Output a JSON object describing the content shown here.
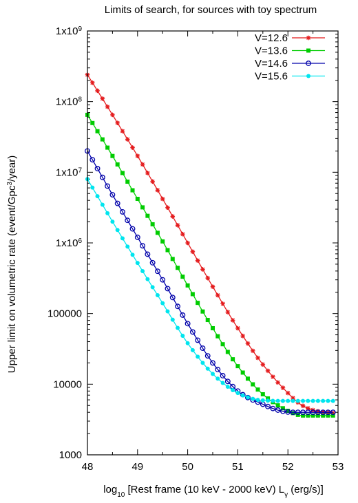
{
  "chart_data": {
    "type": "line",
    "title": "Limits of search, for sources with toy spectrum",
    "xlabel_main": "log",
    "xlabel_sub": "10",
    "xlabel_rest": " [Rest frame (10 keV - 2000 keV)  L",
    "xlabel_gamma": "γ",
    "xlabel_unit": " (erg/s)]",
    "ylabel_pre": "Upper limit on volumetric rate (event/Gpc",
    "ylabel_sup": "3",
    "ylabel_post": "/year)",
    "xlim": [
      48,
      53
    ],
    "ylim": [
      1000,
      1000000000
    ],
    "yscale": "log",
    "x_ticks": [
      "48",
      "49",
      "50",
      "51",
      "52",
      "53"
    ],
    "y_ticks": [
      {
        "value": 1000,
        "label": "1000",
        "sup": ""
      },
      {
        "value": 10000,
        "label": "10000",
        "sup": ""
      },
      {
        "value": 100000,
        "label": "100000",
        "sup": ""
      },
      {
        "value": 1000000,
        "label": "1x10",
        "sup": "6"
      },
      {
        "value": 10000000,
        "label": "1x10",
        "sup": "7"
      },
      {
        "value": 100000000,
        "label": "1x10",
        "sup": "8"
      },
      {
        "value": 1000000000,
        "label": "1x10",
        "sup": "9"
      }
    ],
    "legend_position": "top-right",
    "series": [
      {
        "name": "V=12.6",
        "color": "#e41a1c",
        "marker": "star",
        "points": [
          [
            48,
            240000000
          ],
          [
            48.5,
            65000000
          ],
          [
            49,
            17000000
          ],
          [
            49.5,
            4200000
          ],
          [
            50,
            1000000
          ],
          [
            50.5,
            240000
          ],
          [
            51,
            62000
          ],
          [
            51.5,
            19000
          ],
          [
            52,
            7500
          ],
          [
            52.25,
            5200
          ],
          [
            52.5,
            4300
          ],
          [
            52.9,
            3900
          ]
        ]
      },
      {
        "name": "V=13.6",
        "color": "#00cc00",
        "marker": "filled-square",
        "points": [
          [
            48,
            65000000
          ],
          [
            48.5,
            17000000
          ],
          [
            49,
            4200000
          ],
          [
            49.5,
            1050000
          ],
          [
            50,
            250000
          ],
          [
            50.5,
            62000
          ],
          [
            51,
            18000
          ],
          [
            51.5,
            7200
          ],
          [
            52,
            4200
          ],
          [
            52.3,
            3600
          ],
          [
            52.9,
            3600
          ]
        ]
      },
      {
        "name": "V=14.6",
        "color": "#0000aa",
        "marker": "open-circle",
        "points": [
          [
            48,
            20000000
          ],
          [
            48.5,
            4800000
          ],
          [
            49,
            1200000
          ],
          [
            49.5,
            300000
          ],
          [
            50,
            72000
          ],
          [
            50.5,
            20000
          ],
          [
            51,
            8000
          ],
          [
            51.5,
            5200
          ],
          [
            51.8,
            4300
          ],
          [
            52.1,
            4000
          ],
          [
            52.9,
            4000
          ]
        ]
      },
      {
        "name": "V=15.6",
        "color": "#00e5ee",
        "marker": "filled-circle",
        "points": [
          [
            48,
            8000000
          ],
          [
            48.5,
            2000000
          ],
          [
            49,
            520000
          ],
          [
            49.5,
            140000
          ],
          [
            50,
            38000
          ],
          [
            50.5,
            14000
          ],
          [
            51,
            7500
          ],
          [
            51.5,
            5900
          ],
          [
            52,
            5800
          ],
          [
            52.9,
            5800
          ]
        ]
      }
    ]
  }
}
